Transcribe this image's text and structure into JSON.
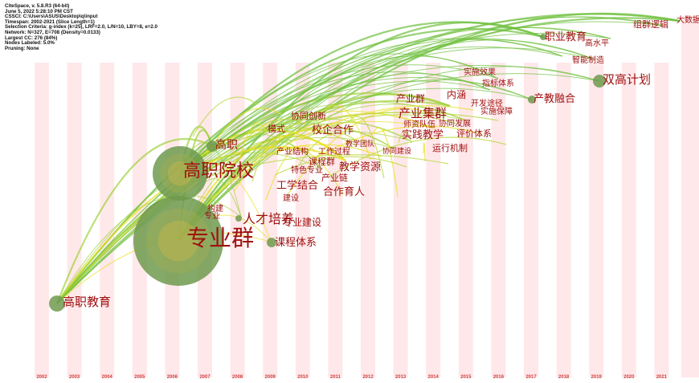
{
  "header": {
    "lines": [
      "CiteSpace, v. 5.8.R3 (64-bit)",
      "June 5, 2022 5:28:10 PM CST",
      "CSSCI: C:\\Users\\ASUS\\Desktop\\q\\input",
      "Timespan: 2002-2021 (Slice Length=1)",
      "Selection Criteria: g-index (k=25), LRF=2.0, L/N=10, LBY=8, e=2.0",
      "Network: N=327, E=708 (Density=0.0133)",
      "Largest CC: 276 (84%)",
      "Nodes Labeled: 5.0%",
      "Pruning: None"
    ]
  },
  "timeline": {
    "years": [
      "2002",
      "2003",
      "2004",
      "2005",
      "2006",
      "2007",
      "2008",
      "2009",
      "2010",
      "2011",
      "2012",
      "2013",
      "2014",
      "2015",
      "2016",
      "2017",
      "2018",
      "2019",
      "2020",
      "2021"
    ]
  },
  "colors": {
    "stripe": "#ffe8ea",
    "year_label": "#d04040",
    "keyword": "#a01010",
    "node_fill": "#6f9a4e",
    "link_green": "#6cbf3a",
    "link_yellow": "#e8e020"
  },
  "keywords": [
    {
      "text": "专业群",
      "name": "keyword-zhuanyequn"
    },
    {
      "text": "高职院校",
      "name": "keyword-gaozhiyuanxiao"
    },
    {
      "text": "高职教育",
      "name": "keyword-gaozhijiaoyu"
    },
    {
      "text": "人才培养",
      "name": "keyword-rencaipeiyang"
    },
    {
      "text": "专业建设",
      "name": "keyword-zhuanyejianshe"
    },
    {
      "text": "课程体系",
      "name": "keyword-kechengtixi"
    },
    {
      "text": "高职",
      "name": "keyword-gaozhi"
    },
    {
      "text": "产业集群",
      "name": "keyword-chanyejiqun"
    },
    {
      "text": "产业群",
      "name": "keyword-chanyequn"
    },
    {
      "text": "实践教学",
      "name": "keyword-shijianjiaoxue"
    },
    {
      "text": "评价体系",
      "name": "keyword-pingjiatixi"
    },
    {
      "text": "双高计划",
      "name": "keyword-shuanggaojihua"
    },
    {
      "text": "产教融合",
      "name": "keyword-chanjiaoronghe"
    },
    {
      "text": "职业教育",
      "name": "keyword-zhiyejiaoyu"
    },
    {
      "text": "组群逻辑",
      "name": "keyword-zuqunluoji"
    },
    {
      "text": "大数据",
      "name": "keyword-dashuju"
    },
    {
      "text": "高水平",
      "name": "keyword-gaoshuiping"
    },
    {
      "text": "智能制造",
      "name": "keyword-zhinengzhizao"
    },
    {
      "text": "实施效果",
      "name": "keyword-shishixiaoguo"
    },
    {
      "text": "指标体系",
      "name": "keyword-zhibiaotixi"
    },
    {
      "text": "内涵",
      "name": "keyword-neihan"
    },
    {
      "text": "开发途径",
      "name": "keyword-kaifatujing"
    },
    {
      "text": "实施保障",
      "name": "keyword-shishibaozhang"
    },
    {
      "text": "师资队伍",
      "name": "keyword-shiziduiwu"
    },
    {
      "text": "协同发展",
      "name": "keyword-xietongfazhan"
    },
    {
      "text": "运行机制",
      "name": "keyword-yunxingjizhi"
    },
    {
      "text": "协同建设",
      "name": "keyword-xietongjianshe"
    },
    {
      "text": "协同创新",
      "name": "keyword-xietongchuangxin"
    },
    {
      "text": "模式",
      "name": "keyword-moshi"
    },
    {
      "text": "校企合作",
      "name": "keyword-xiaoqihezuo"
    },
    {
      "text": "教学团队",
      "name": "keyword-jiaoxuetuandui"
    },
    {
      "text": "产业结构",
      "name": "keyword-chanyejiegou"
    },
    {
      "text": "工作过程",
      "name": "keyword-gongzuoguocheng"
    },
    {
      "text": "课程群",
      "name": "keyword-kechengqun"
    },
    {
      "text": "特色专业",
      "name": "keyword-tesezhuanye"
    },
    {
      "text": "产业链",
      "name": "keyword-chanyelian"
    },
    {
      "text": "教学资源",
      "name": "keyword-jiaoxueziyuan"
    },
    {
      "text": "工学结合",
      "name": "keyword-gongxuejiehe"
    },
    {
      "text": "合作育人",
      "name": "keyword-hezuoyuren"
    },
    {
      "text": "建设",
      "name": "keyword-jianshe"
    },
    {
      "text": "构建",
      "name": "keyword-goujian"
    },
    {
      "text": "专业",
      "name": "keyword-zhuanye"
    }
  ]
}
